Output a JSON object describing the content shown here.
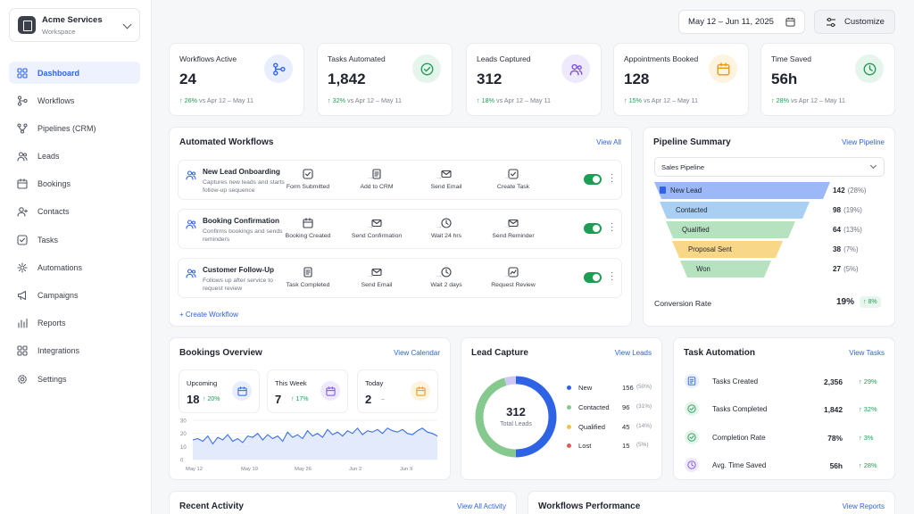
{
  "workspace": {
    "name": "Acme Services",
    "subtitle": "Workspace"
  },
  "nav": [
    {
      "label": "Dashboard",
      "icon": "dashboard-icon",
      "active": true
    },
    {
      "label": "Workflows",
      "icon": "workflow-icon"
    },
    {
      "label": "Pipelines (CRM)",
      "icon": "pipeline-icon"
    },
    {
      "label": "Leads",
      "icon": "leads-icon"
    },
    {
      "label": "Bookings",
      "icon": "calendar-icon"
    },
    {
      "label": "Contacts",
      "icon": "contacts-icon"
    },
    {
      "label": "Tasks",
      "icon": "check-square-icon"
    },
    {
      "label": "Automations",
      "icon": "automation-icon"
    },
    {
      "label": "Campaigns",
      "icon": "megaphone-icon"
    },
    {
      "label": "Reports",
      "icon": "bar-chart-icon"
    },
    {
      "label": "Integrations",
      "icon": "grid-icon"
    },
    {
      "label": "Settings",
      "icon": "gear-icon"
    }
  ],
  "topbar": {
    "date_range": "May 12 – Jun 11, 2025",
    "customize_label": "Customize"
  },
  "stats": [
    {
      "title": "Workflows Active",
      "value": "24",
      "delta": "↑ 26%",
      "compare": "vs Apr 12 – May 11",
      "icon": "workflow-icon",
      "color": "#2f63e6",
      "bg": "#e8eefd"
    },
    {
      "title": "Tasks Automated",
      "value": "1,842",
      "delta": "↑ 32%",
      "compare": "vs Apr 12 – May 11",
      "icon": "check-circle-icon",
      "color": "#1e9e55",
      "bg": "#e6f5ec"
    },
    {
      "title": "Leads Captured",
      "value": "312",
      "delta": "↑ 18%",
      "compare": "vs Apr 12 – May 11",
      "icon": "users-icon",
      "color": "#7b4fe0",
      "bg": "#efe9fc"
    },
    {
      "title": "Appointments Booked",
      "value": "128",
      "delta": "↑ 15%",
      "compare": "vs Apr 12 – May 11",
      "icon": "calendar-icon",
      "color": "#e59a12",
      "bg": "#fdf3df"
    },
    {
      "title": "Time Saved",
      "value": "56h",
      "delta": "↑ 28%",
      "compare": "vs Apr 12 – May 11",
      "icon": "clock-icon",
      "color": "#1e9e55",
      "bg": "#e6f5ec"
    }
  ],
  "workflows": {
    "title": "Automated Workflows",
    "link": "View All",
    "create_label": "+ Create Workflow",
    "rows": [
      {
        "name": "New Lead Onboarding",
        "desc": "Captures new leads and starts follow-up sequence",
        "steps": [
          {
            "label": "Form Submitted",
            "icon": "checkbox-icon"
          },
          {
            "label": "Add to CRM",
            "icon": "document-icon"
          },
          {
            "label": "Send Email",
            "icon": "mail-icon"
          },
          {
            "label": "Create Task",
            "icon": "checkbox-icon"
          }
        ]
      },
      {
        "name": "Booking Confirmation",
        "desc": "Confirms bookings and sends reminders",
        "steps": [
          {
            "label": "Booking Created",
            "icon": "calendar-icon"
          },
          {
            "label": "Send Confirmation",
            "icon": "mail-icon"
          },
          {
            "label": "Wait 24 hrs",
            "icon": "clock-icon"
          },
          {
            "label": "Send Reminder",
            "icon": "mail-icon"
          }
        ]
      },
      {
        "name": "Customer Follow-Up",
        "desc": "Follows up after service to request review",
        "steps": [
          {
            "label": "Task Completed",
            "icon": "document-icon"
          },
          {
            "label": "Send Email",
            "icon": "mail-icon"
          },
          {
            "label": "Wait 2 days",
            "icon": "clock-icon"
          },
          {
            "label": "Request Review",
            "icon": "chart-icon"
          }
        ]
      }
    ]
  },
  "pipeline": {
    "title": "Pipeline Summary",
    "link": "View Pipeline",
    "selected": "Sales Pipeline",
    "stages": [
      {
        "label": "New Lead",
        "value": "142",
        "pct": "(28%)",
        "color": "#9cb8f7"
      },
      {
        "label": "Contacted",
        "value": "98",
        "pct": "(19%)",
        "color": "#a9d0f2"
      },
      {
        "label": "Qualified",
        "value": "64",
        "pct": "(13%)",
        "color": "#b6e2bf"
      },
      {
        "label": "Proposal Sent",
        "value": "38",
        "pct": "(7%)",
        "color": "#f8d788"
      },
      {
        "label": "Won",
        "value": "27",
        "pct": "(5%)",
        "color": "#b6e2bf"
      }
    ],
    "conversion_label": "Conversion Rate",
    "conversion_value": "19%",
    "conversion_delta": "↑ 8%"
  },
  "bookings": {
    "title": "Bookings Overview",
    "link": "View Calendar",
    "cards": [
      {
        "title": "Upcoming",
        "value": "18",
        "delta": "↑ 20%",
        "color": "#2f63e6",
        "bg": "#e8eefd"
      },
      {
        "title": "This Week",
        "value": "7",
        "delta": "↑ 17%",
        "color": "#7b4fe0",
        "bg": "#efe9fc"
      },
      {
        "title": "Today",
        "value": "2",
        "delta": "–",
        "color": "#e59a12",
        "bg": "#fdf3df"
      }
    ]
  },
  "chart_data": {
    "type": "area",
    "x_tick_labels": [
      "May 12",
      "May 19",
      "May 26",
      "Jun 2",
      "Jun 9"
    ],
    "y_ticks": [
      0,
      10,
      20,
      30
    ],
    "ylim": [
      0,
      30
    ],
    "grid": true,
    "color": "#3b6fea",
    "values": [
      15,
      16,
      14,
      18,
      12,
      17,
      15,
      19,
      14,
      16,
      13,
      18,
      17,
      20,
      15,
      19,
      16,
      18,
      14,
      21,
      17,
      19,
      16,
      22,
      18,
      20,
      17,
      23,
      19,
      21,
      18,
      22,
      20,
      24,
      19,
      22,
      21,
      23,
      20,
      24,
      22,
      21,
      23,
      20,
      19,
      22,
      24,
      21,
      20,
      18
    ]
  },
  "lead_capture": {
    "title": "Lead Capture",
    "link": "View Leads",
    "total": "312",
    "total_label": "Total Leads",
    "segments": [
      {
        "name": "New",
        "value": 156,
        "pct": "(50%)",
        "color": "#2f63e6"
      },
      {
        "name": "Contacted",
        "value": 96,
        "pct": "(31%)",
        "color": "#85c98f"
      },
      {
        "name": "Qualified",
        "value": 45,
        "pct": "(14%)",
        "color": "#f0c44a"
      },
      {
        "name": "Lost",
        "value": 15,
        "pct": "(5%)",
        "color": "#e25b5b"
      }
    ],
    "ring_colors": [
      "#2f63e6",
      "#85c98f",
      "#85c98f",
      "#cfc8f2"
    ]
  },
  "task_automation": {
    "title": "Task Automation",
    "link": "View Tasks",
    "rows": [
      {
        "label": "Tasks Created",
        "value": "2,356",
        "delta": "↑ 29%",
        "icon": "list-icon",
        "color": "#2f63e6",
        "bg": "#e8eefd"
      },
      {
        "label": "Tasks Completed",
        "value": "1,842",
        "delta": "↑ 32%",
        "icon": "check-circle-icon",
        "color": "#1e9e55",
        "bg": "#e6f5ec"
      },
      {
        "label": "Completion Rate",
        "value": "78%",
        "delta": "↑ 3%",
        "icon": "check-circle-icon",
        "color": "#1e9e55",
        "bg": "#e6f5ec"
      },
      {
        "label": "Avg. Time Saved",
        "value": "56h",
        "delta": "↑ 28%",
        "icon": "clock-icon",
        "color": "#7b4fe0",
        "bg": "#efe9fc"
      }
    ]
  },
  "recent_activity": {
    "title": "Recent Activity",
    "link": "View All Activity"
  },
  "workflows_performance": {
    "title": "Workflows Performance",
    "link": "View Reports"
  }
}
